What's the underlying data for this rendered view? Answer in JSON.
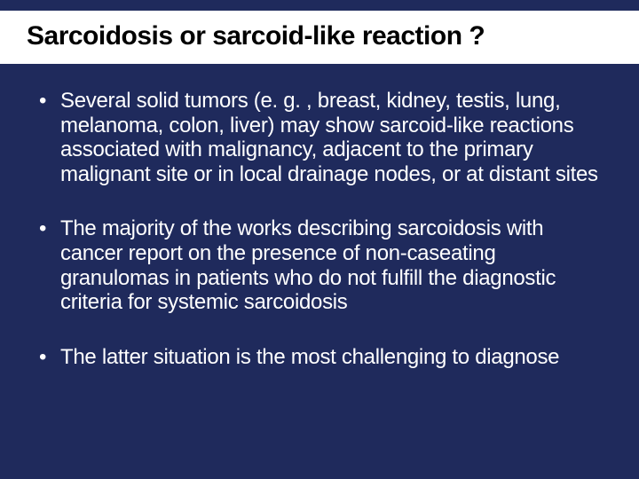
{
  "slide": {
    "title": "Sarcoidosis or sarcoid-like reaction ?",
    "bullets": [
      "Several solid tumors (e. g. , breast, kidney, testis, lung, melanoma, colon, liver) may show sarcoid-like reactions associated with malignancy, adjacent to the primary malignant site or in local drainage nodes, or at distant sites",
      "The majority of the works describing sarcoidosis with cancer report on the presence of non-caseating granulomas in patients who do not fulfill the diagnostic criteria for systemic sarcoidosis",
      "The latter situation is the most challenging to diagnose"
    ],
    "background_color": "#1f2a5c",
    "title_bg_color": "#ffffff",
    "title_text_color": "#000000",
    "body_text_color": "#ffffff",
    "title_fontsize": 30,
    "body_fontsize": 24
  }
}
